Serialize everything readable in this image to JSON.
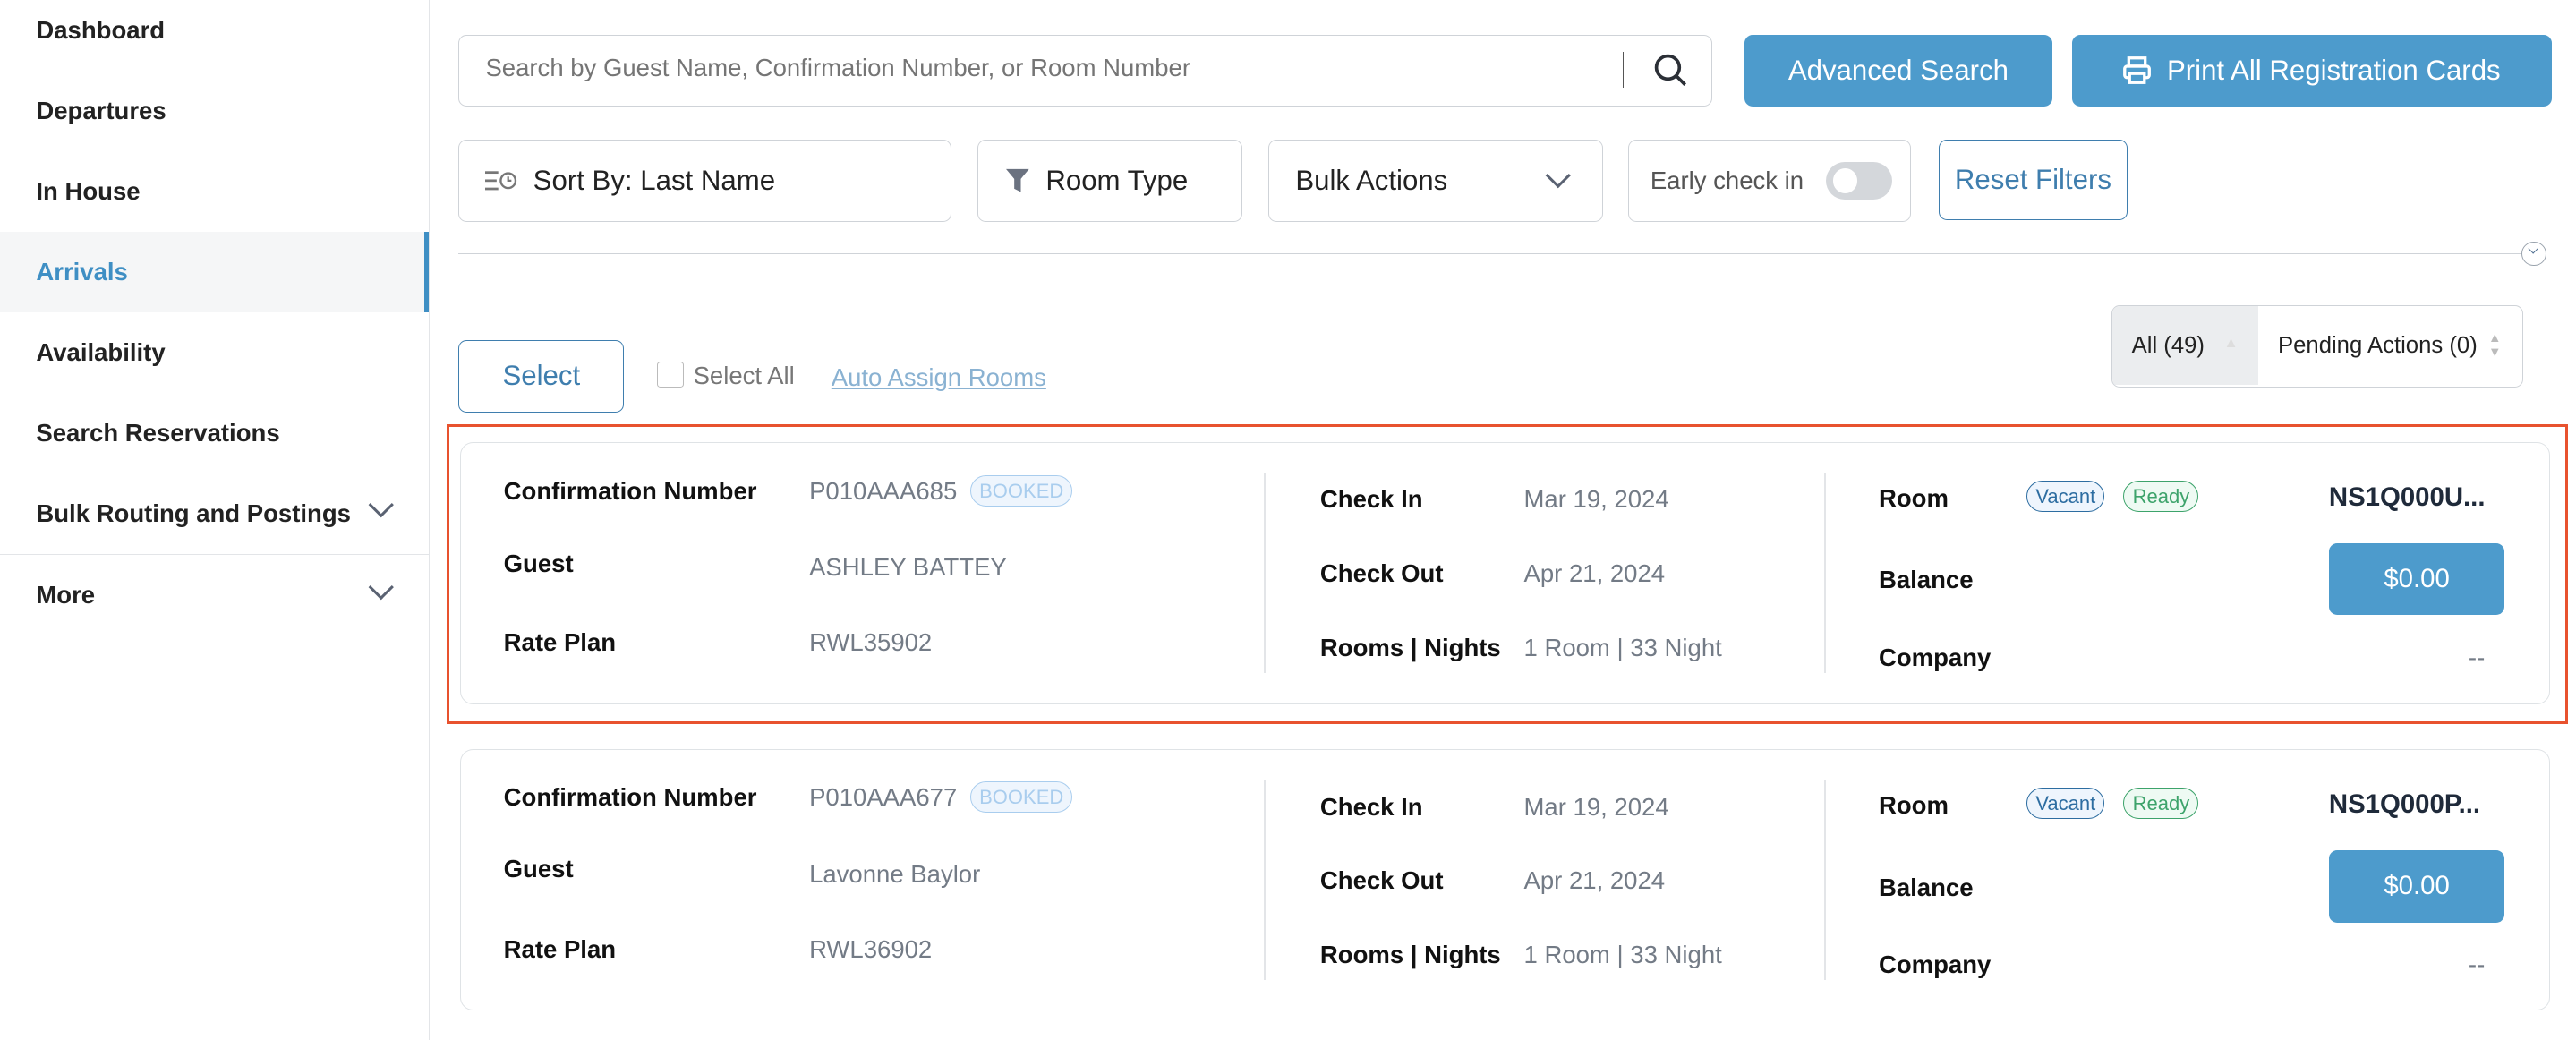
{
  "sidebar": {
    "items": [
      {
        "label": "Dashboard"
      },
      {
        "label": "Departures"
      },
      {
        "label": "In House"
      },
      {
        "label": "Arrivals",
        "active": true
      },
      {
        "label": "Availability"
      },
      {
        "label": "Search Reservations"
      },
      {
        "label": "Bulk Routing and Postings"
      },
      {
        "label": "More"
      }
    ]
  },
  "toolbar": {
    "search_placeholder": "Search by Guest Name, Confirmation Number, or Room Number",
    "advanced_search": "Advanced Search",
    "print_all": "Print All Registration Cards",
    "sort_by": "Sort By: Last Name",
    "room_type": "Room Type",
    "bulk_actions": "Bulk Actions",
    "early_check_in": "Early check in",
    "early_check_in_on": false,
    "reset_filters": "Reset Filters"
  },
  "list_controls": {
    "select": "Select",
    "select_all": "Select All",
    "auto_assign": "Auto Assign Rooms",
    "tab_all": "All (49)",
    "tab_pending": "Pending Actions (0)"
  },
  "labels": {
    "confirmation": "Confirmation Number",
    "guest": "Guest",
    "rate_plan": "Rate Plan",
    "check_in": "Check In",
    "check_out": "Check Out",
    "rooms_nights": "Rooms | Nights",
    "room": "Room",
    "balance": "Balance",
    "company": "Company"
  },
  "colors": {
    "accent": "#4d9bcc",
    "highlight": "#e8522e"
  },
  "reservations": [
    {
      "confirmation": "P010AAA685",
      "status": "BOOKED",
      "guest": "ASHLEY BATTEY",
      "rate_plan": "RWL35902",
      "check_in": "Mar 19, 2024",
      "check_out": "Apr 21, 2024",
      "rooms_nights": "1 Room | 33 Night",
      "room_status": "Vacant",
      "room_ready": "Ready",
      "room": "NS1Q000U...",
      "balance": "$0.00",
      "company": "--"
    },
    {
      "confirmation": "P010AAA677",
      "status": "BOOKED",
      "guest": "Lavonne Baylor",
      "rate_plan": "RWL36902",
      "check_in": "Mar 19, 2024",
      "check_out": "Apr 21, 2024",
      "rooms_nights": "1 Room | 33 Night",
      "room_status": "Vacant",
      "room_ready": "Ready",
      "room": "NS1Q000P...",
      "balance": "$0.00",
      "company": "--"
    }
  ]
}
